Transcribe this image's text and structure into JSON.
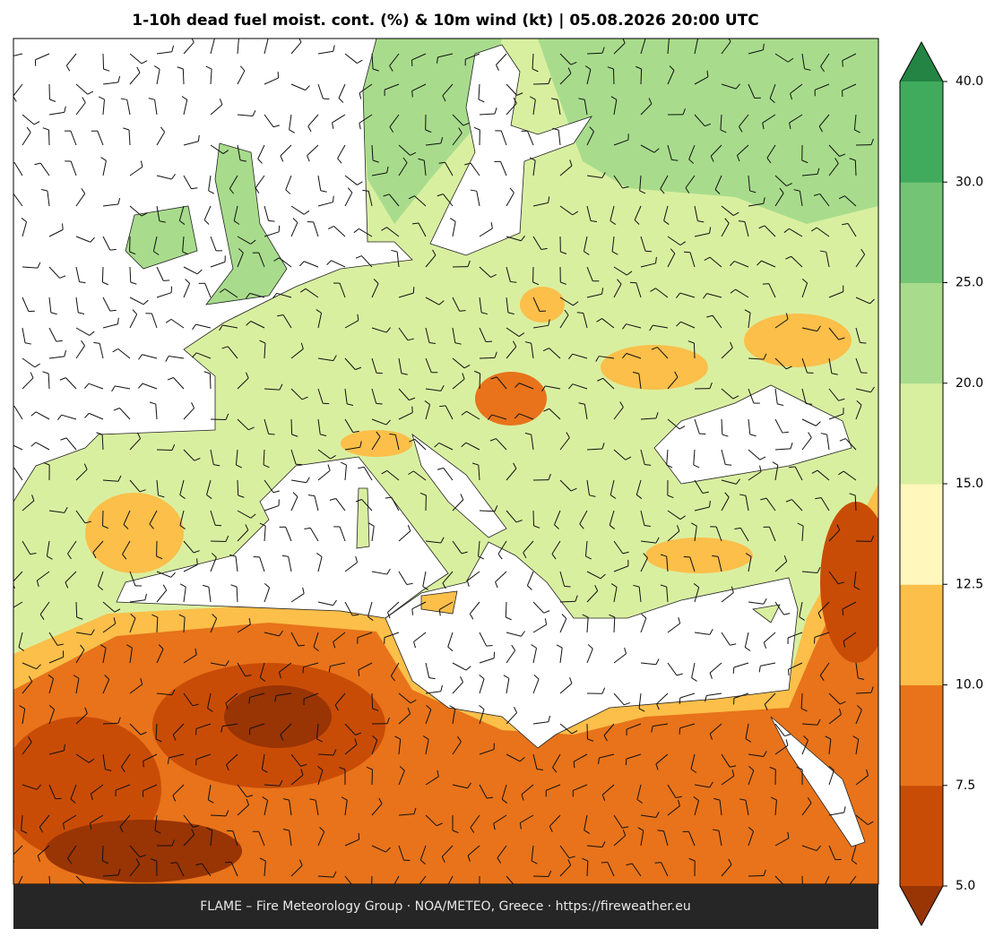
{
  "map": {
    "title": "1-10h dead fuel moist. cont. (%) & 10m wind (kt)  |  05.08.2026 20:00 UTC",
    "footer": "FLAME – Fire Meteorology Group · NOA/METEO, Greece · https://fireweather.eu",
    "colorbar": {
      "ticks": [
        {
          "value": 5,
          "label": "5.0"
        },
        {
          "value": 7.5,
          "label": "7.5"
        },
        {
          "value": 10,
          "label": "10.0"
        },
        {
          "value": 12.5,
          "label": "12.5"
        },
        {
          "value": 15,
          "label": "15.0"
        },
        {
          "value": 20,
          "label": "20.0"
        },
        {
          "value": 25,
          "label": "25.0"
        },
        {
          "value": 30,
          "label": "30.0"
        },
        {
          "value": 40,
          "label": "40.0"
        }
      ],
      "colors": [
        "#c94c06",
        "#e8731a",
        "#fbbf4a",
        "#fff7bc",
        "#d9efa0",
        "#a8dc8c",
        "#74c476",
        "#41ab5d"
      ],
      "under_color": "#993404",
      "over_color": "#238443"
    }
  }
}
